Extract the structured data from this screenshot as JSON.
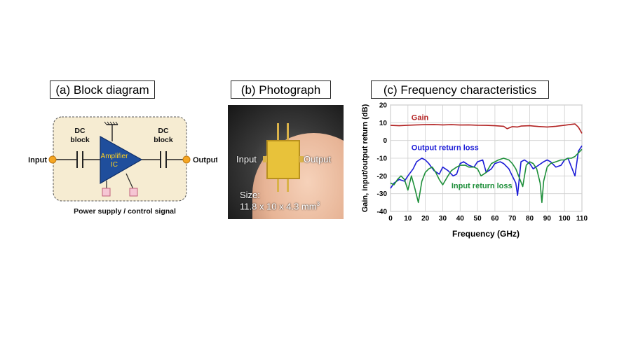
{
  "panels": {
    "a": {
      "title": "(a) Block diagram"
    },
    "b": {
      "title": "(b) Photograph"
    },
    "c": {
      "title": "(c) Frequency characteristics"
    }
  },
  "block_diagram": {
    "input_label": "Input",
    "output_label": "Output",
    "dc_block_left_line1": "DC",
    "dc_block_left_line2": "block",
    "dc_block_right_line1": "DC",
    "dc_block_right_line2": "block",
    "amplifier_line1": "Amplifier",
    "amplifier_line2": "IC",
    "power_label": "Power supply / control signal",
    "colors": {
      "box_fill": "#f6ecd2",
      "amp_fill": "#1f4e9c",
      "amp_text": "#ffd21f",
      "port": "#f5a623",
      "pad": "#f6c6d4"
    }
  },
  "photograph": {
    "input_label": "Input",
    "output_label": "Output",
    "size_line1": "Size:",
    "size_line2": "11.8 x 10 x 4.3 mm",
    "size_superscript": "3"
  },
  "chart_data": {
    "type": "line",
    "xlabel": "Frequency (GHz)",
    "ylabel": "Gain, input/output return (dB)",
    "xlim": [
      0,
      110
    ],
    "ylim": [
      -40,
      20
    ],
    "xticks": [
      0,
      10,
      20,
      30,
      40,
      50,
      60,
      70,
      80,
      90,
      100,
      110
    ],
    "yticks": [
      -40,
      -30,
      -20,
      -10,
      0,
      10,
      20
    ],
    "grid": true,
    "series": [
      {
        "name": "Gain",
        "color": "#b22222",
        "x": [
          0,
          5,
          10,
          15,
          20,
          25,
          30,
          35,
          40,
          45,
          50,
          55,
          60,
          65,
          67,
          70,
          73,
          75,
          80,
          85,
          90,
          95,
          100,
          103,
          106,
          108,
          110
        ],
        "y": [
          8.5,
          8.3,
          8.6,
          8.8,
          8.9,
          9,
          8.8,
          8.9,
          8.7,
          8.8,
          8.6,
          8.5,
          8.3,
          8,
          6.6,
          7.8,
          7.6,
          8.1,
          8.3,
          7.9,
          7.6,
          8,
          8.6,
          9,
          9.3,
          7.5,
          4
        ]
      },
      {
        "name": "Output return loss",
        "color": "#1a1ad6",
        "x": [
          0,
          2,
          5,
          8,
          10,
          13,
          15,
          18,
          20,
          22,
          25,
          28,
          30,
          33,
          36,
          38,
          40,
          42,
          45,
          48,
          50,
          53,
          55,
          58,
          60,
          63,
          65,
          68,
          70,
          72,
          73,
          75,
          77,
          80,
          82,
          85,
          88,
          90,
          92,
          95,
          98,
          100,
          102,
          104,
          106,
          108,
          110
        ],
        "y": [
          -27,
          -24,
          -22,
          -23,
          -20,
          -16,
          -12,
          -10,
          -11,
          -13,
          -17,
          -19,
          -15,
          -17,
          -20,
          -19,
          -13,
          -12,
          -14,
          -15,
          -12,
          -11,
          -18,
          -16,
          -13,
          -12,
          -13,
          -16,
          -20,
          -24,
          -31,
          -12,
          -11,
          -13,
          -16,
          -14,
          -12,
          -11,
          -12,
          -15,
          -14,
          -11,
          -10,
          -15,
          -20,
          -6,
          -3
        ]
      },
      {
        "name": "Input return loss",
        "color": "#1e8f3a",
        "x": [
          0,
          2,
          4,
          6,
          8,
          10,
          12,
          14,
          16,
          18,
          20,
          22,
          24,
          26,
          28,
          30,
          33,
          35,
          38,
          40,
          43,
          45,
          48,
          50,
          52,
          55,
          58,
          60,
          62,
          65,
          68,
          70,
          72,
          74,
          76,
          78,
          80,
          82,
          84,
          86,
          87,
          88,
          90,
          92,
          95,
          98,
          100,
          102,
          104,
          106,
          108,
          110
        ],
        "y": [
          -24,
          -25,
          -22,
          -20,
          -22,
          -28,
          -20,
          -27,
          -35,
          -23,
          -18,
          -16,
          -15,
          -18,
          -22,
          -25,
          -20,
          -17,
          -15,
          -14,
          -14,
          -15,
          -15,
          -16,
          -20,
          -18,
          -13,
          -12,
          -11,
          -10,
          -11,
          -13,
          -16,
          -21,
          -26,
          -14,
          -12,
          -13,
          -16,
          -24,
          -35,
          -23,
          -15,
          -13,
          -12,
          -11,
          -11,
          -10,
          -10,
          -9,
          -7,
          -5
        ]
      }
    ],
    "annotations": [
      {
        "text": "Gain",
        "x": 12,
        "y": 11.5,
        "color": "#b22222"
      },
      {
        "text": "Output return loss",
        "x": 12,
        "y": -5.5,
        "color": "#1a1ad6"
      },
      {
        "text": "Input return loss",
        "x": 35,
        "y": -27,
        "color": "#1e8f3a"
      }
    ]
  }
}
